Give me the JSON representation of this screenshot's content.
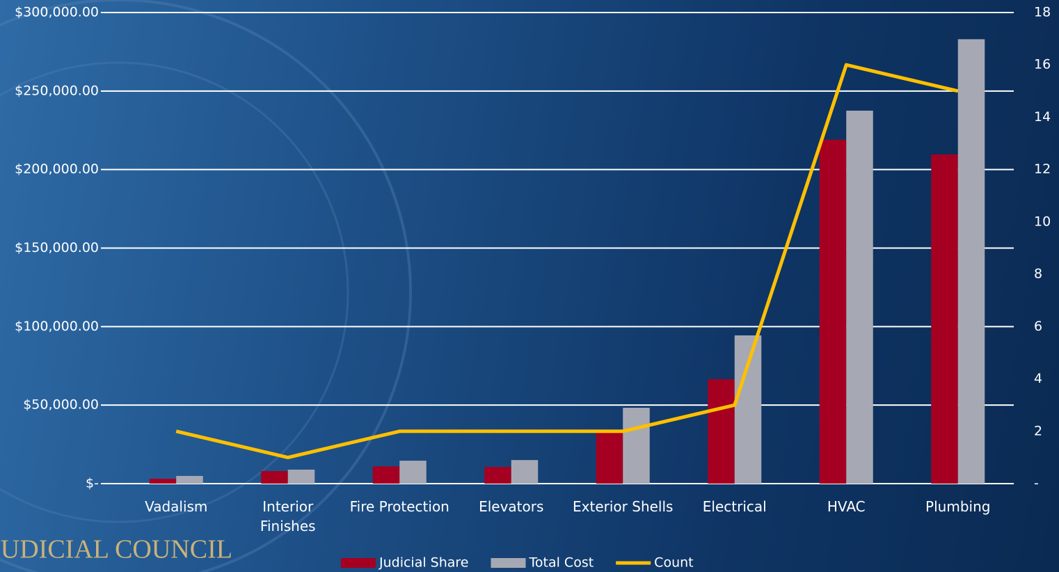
{
  "brand": "JUDICIAL COUNCIL",
  "chart_data": {
    "type": "bar",
    "categories": [
      "Vadalism",
      "Interior Finishes",
      "Fire Protection",
      "Elevators",
      "Exterior Shells",
      "Electrical",
      "HVAC",
      "Plumbing"
    ],
    "series": [
      {
        "name": "Judicial Share",
        "color": "#a50021",
        "values": [
          3100,
          8000,
          11000,
          10600,
          33000,
          66500,
          219000,
          209600
        ]
      },
      {
        "name": "Total Cost",
        "color": "#a6a9b4",
        "values": [
          4900,
          8900,
          14600,
          15000,
          48300,
          94400,
          237500,
          283000
        ]
      },
      {
        "name": "Count",
        "color": "#ffc000",
        "type": "line",
        "axis": "y2",
        "values": [
          2,
          1,
          2,
          2,
          2,
          3,
          16,
          15
        ]
      }
    ],
    "ylim": [
      0,
      300000
    ],
    "yticks": [
      {
        "value": 0,
        "label": "$-"
      },
      {
        "value": 50000,
        "label": "$50,000.00"
      },
      {
        "value": 100000,
        "label": "$100,000.00"
      },
      {
        "value": 150000,
        "label": "$150,000.00"
      },
      {
        "value": 200000,
        "label": "$200,000.00"
      },
      {
        "value": 250000,
        "label": "$250,000.00"
      },
      {
        "value": 300000,
        "label": "$300,000.00"
      }
    ],
    "y2lim": [
      0,
      18
    ],
    "y2ticks": [
      {
        "value": 0,
        "label": "-"
      },
      2,
      4,
      6,
      8,
      10,
      12,
      14,
      16,
      18
    ],
    "grid": true,
    "legend": "bottom"
  }
}
